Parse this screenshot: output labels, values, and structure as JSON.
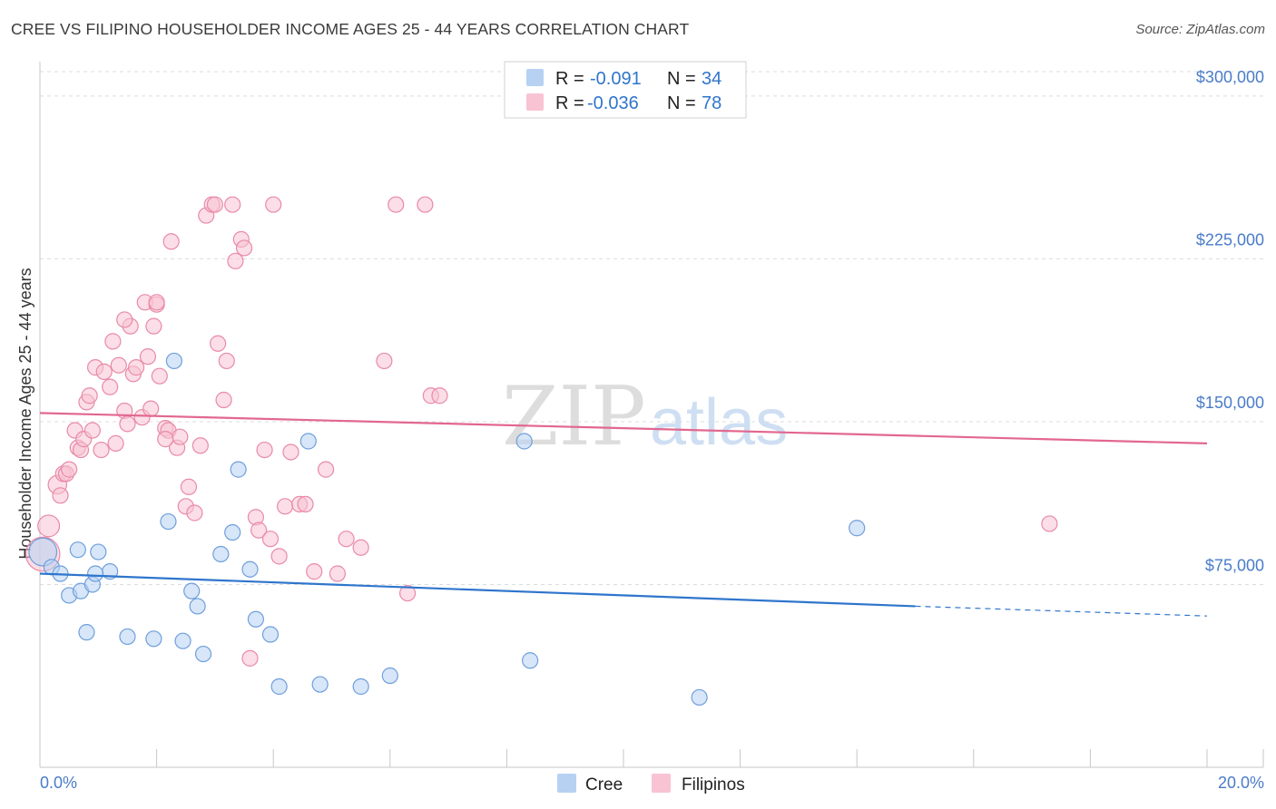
{
  "header": {
    "title": "CREE VS FILIPINO HOUSEHOLDER INCOME AGES 25 - 44 YEARS CORRELATION CHART",
    "source": "Source: ZipAtlas.com"
  },
  "watermark": {
    "zip": "ZIP",
    "atlas": "atlas"
  },
  "colors": {
    "cree_fill": "#b7d1f3",
    "cree_stroke": "#6f9fdc",
    "cree_line": "#2f75cc",
    "filipino_fill": "#f8c3d3",
    "filipino_stroke": "#e98aa8",
    "filipino_line": "#e2678f",
    "tick_label": "#4a7cc9",
    "grid": "#dcdcdc"
  },
  "stats": [
    {
      "r_label": "R = ",
      "r_value": "-0.091",
      "n_label": "N = ",
      "n_value": "34"
    },
    {
      "r_label": "R = ",
      "r_value": "-0.036",
      "n_label": "N = ",
      "n_value": "78"
    }
  ],
  "chart_data": {
    "type": "scatter",
    "title": "CREE VS FILIPINO HOUSEHOLDER INCOME AGES 25 - 44 YEARS CORRELATION CHART",
    "xlabel": "",
    "ylabel": "Householder Income Ages 25 - 44 years",
    "xlim": [
      0,
      20
    ],
    "ylim": [
      0,
      315000
    ],
    "x_tick_labels": [
      "0.0%",
      "20.0%"
    ],
    "y_ticks": [
      75000,
      150000,
      225000,
      300000
    ],
    "y_tick_labels": [
      "$75,000",
      "$150,000",
      "$225,000",
      "$300,000"
    ],
    "grid": true,
    "legend_position": "bottom-center",
    "series": [
      {
        "name": "Cree",
        "r": -0.091,
        "n": 34,
        "trend": {
          "x0": 0,
          "y0": 80000,
          "x1": 15,
          "y1": 65000,
          "dash_x1": 20,
          "dash_y1": 60500
        },
        "points": [
          [
            0.05,
            90000,
            18
          ],
          [
            0.2,
            83000,
            10
          ],
          [
            0.35,
            80000,
            10
          ],
          [
            0.5,
            70000,
            10
          ],
          [
            0.65,
            91000,
            10
          ],
          [
            0.7,
            72000,
            10
          ],
          [
            0.8,
            53000,
            10
          ],
          [
            0.9,
            75000,
            10
          ],
          [
            1.5,
            51000,
            10
          ],
          [
            1.0,
            90000,
            10
          ],
          [
            1.2,
            81000,
            10
          ],
          [
            1.95,
            50000,
            10
          ],
          [
            2.2,
            104000,
            10
          ],
          [
            2.3,
            178000,
            10
          ],
          [
            2.45,
            49000,
            10
          ],
          [
            2.6,
            72000,
            10
          ],
          [
            2.7,
            65000,
            10
          ],
          [
            2.8,
            43000,
            10
          ],
          [
            3.1,
            89000,
            10
          ],
          [
            3.3,
            99000,
            10
          ],
          [
            3.4,
            128000,
            10
          ],
          [
            3.6,
            82000,
            10
          ],
          [
            3.7,
            59000,
            10
          ],
          [
            3.95,
            52000,
            10
          ],
          [
            4.1,
            28000,
            10
          ],
          [
            4.6,
            141000,
            10
          ],
          [
            4.8,
            29000,
            10
          ],
          [
            5.5,
            28000,
            10
          ],
          [
            6.0,
            33000,
            10
          ],
          [
            0.95,
            80000,
            10
          ],
          [
            8.3,
            141000,
            10
          ],
          [
            8.4,
            40000,
            10
          ],
          [
            11.3,
            23000,
            10
          ],
          [
            14.0,
            101000,
            10
          ]
        ]
      },
      {
        "name": "Filipinos",
        "r": -0.036,
        "n": 78,
        "trend": {
          "x0": 0,
          "y0": 154000,
          "x1": 20,
          "y1": 140000
        },
        "points": [
          [
            0.05,
            89000,
            22
          ],
          [
            0.15,
            102000,
            14
          ],
          [
            0.3,
            121000,
            12
          ],
          [
            0.35,
            116000,
            10
          ],
          [
            0.4,
            126000,
            10
          ],
          [
            0.45,
            126000,
            10
          ],
          [
            0.5,
            128000,
            10
          ],
          [
            0.6,
            146000,
            10
          ],
          [
            0.65,
            138000,
            10
          ],
          [
            0.7,
            137000,
            10
          ],
          [
            0.75,
            142000,
            10
          ],
          [
            0.8,
            159000,
            10
          ],
          [
            0.85,
            162000,
            10
          ],
          [
            0.9,
            146000,
            10
          ],
          [
            0.95,
            175000,
            10
          ],
          [
            1.05,
            137000,
            10
          ],
          [
            1.1,
            173000,
            10
          ],
          [
            1.2,
            166000,
            10
          ],
          [
            1.25,
            187000,
            10
          ],
          [
            1.3,
            140000,
            10
          ],
          [
            1.35,
            176000,
            10
          ],
          [
            1.45,
            155000,
            10
          ],
          [
            1.5,
            149000,
            10
          ],
          [
            1.55,
            194000,
            10
          ],
          [
            1.6,
            172000,
            10
          ],
          [
            1.65,
            175000,
            10
          ],
          [
            1.75,
            152000,
            10
          ],
          [
            1.8,
            205000,
            10
          ],
          [
            1.85,
            180000,
            10
          ],
          [
            1.9,
            156000,
            10
          ],
          [
            1.95,
            194000,
            10
          ],
          [
            2.0,
            204000,
            10
          ],
          [
            2.05,
            171000,
            10
          ],
          [
            2.15,
            147000,
            10
          ],
          [
            2.2,
            146000,
            10
          ],
          [
            2.25,
            233000,
            10
          ],
          [
            2.35,
            138000,
            10
          ],
          [
            2.4,
            143000,
            10
          ],
          [
            2.5,
            111000,
            10
          ],
          [
            2.55,
            120000,
            10
          ],
          [
            2.65,
            108000,
            10
          ],
          [
            2.75,
            139000,
            10
          ],
          [
            2.85,
            245000,
            10
          ],
          [
            2.95,
            250000,
            10
          ],
          [
            3.05,
            186000,
            10
          ],
          [
            3.15,
            160000,
            10
          ],
          [
            3.2,
            178000,
            10
          ],
          [
            3.3,
            250000,
            10
          ],
          [
            3.35,
            224000,
            10
          ],
          [
            3.45,
            234000,
            10
          ],
          [
            3.5,
            230000,
            10
          ],
          [
            3.6,
            41000,
            10
          ],
          [
            3.7,
            106000,
            10
          ],
          [
            3.75,
            100000,
            10
          ],
          [
            3.85,
            137000,
            10
          ],
          [
            3.95,
            96000,
            10
          ],
          [
            4.0,
            250000,
            10
          ],
          [
            4.1,
            88000,
            10
          ],
          [
            4.2,
            111000,
            10
          ],
          [
            4.3,
            136000,
            10
          ],
          [
            4.45,
            112000,
            10
          ],
          [
            4.55,
            112000,
            10
          ],
          [
            4.7,
            81000,
            10
          ],
          [
            4.9,
            128000,
            10
          ],
          [
            5.1,
            80000,
            10
          ],
          [
            5.25,
            96000,
            10
          ],
          [
            5.5,
            92000,
            10
          ],
          [
            5.9,
            178000,
            10
          ],
          [
            6.1,
            250000,
            10
          ],
          [
            6.3,
            71000,
            10
          ],
          [
            6.6,
            250000,
            10
          ],
          [
            6.7,
            162000,
            10
          ],
          [
            6.85,
            162000,
            10
          ],
          [
            17.3,
            103000,
            10
          ],
          [
            2.0,
            205000,
            10
          ],
          [
            1.45,
            197000,
            10
          ],
          [
            2.15,
            142000,
            10
          ],
          [
            3.0,
            250000,
            10
          ]
        ]
      }
    ]
  },
  "legend": {
    "items": [
      {
        "label": "Cree"
      },
      {
        "label": "Filipinos"
      }
    ]
  }
}
